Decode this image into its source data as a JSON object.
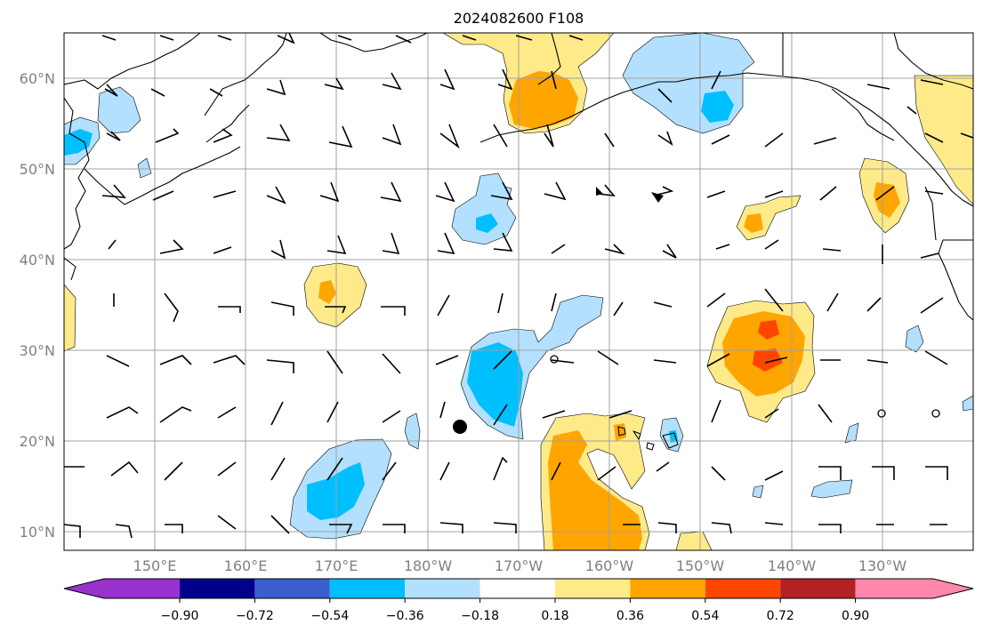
{
  "title": "2024082600 F108",
  "lat_labels": [
    "60°N",
    "50°N",
    "40°N",
    "30°N",
    "20°N",
    "10°N"
  ],
  "lon_labels": [
    "150°E",
    "160°E",
    "170°E",
    "180°W",
    "170°W",
    "160°W",
    "150°W",
    "140°W",
    "130°W"
  ],
  "colorbar": {
    "ticks": [
      "−0.90",
      "−0.72",
      "−0.54",
      "−0.36",
      "−0.18",
      "0.18",
      "0.36",
      "0.54",
      "0.72",
      "0.90"
    ],
    "colors": [
      "#9932cc",
      "#00008b",
      "#3a5fcd",
      "#00bfff",
      "#b3e0ff",
      "#ffffff",
      "#ffea8a",
      "#ffa500",
      "#ff4500",
      "#b22222",
      "#ff88aa"
    ]
  },
  "map": {
    "lat_range": [
      8,
      65
    ],
    "lon_range": [
      140,
      240
    ],
    "markers": [
      {
        "type": "filled-dot",
        "lat": 21.5,
        "lon": 184.2
      },
      {
        "type": "open-circle",
        "lat": 29.2,
        "lon": 194.0
      },
      {
        "type": "open-circle",
        "lat": 23.0,
        "lon": 230.0
      },
      {
        "type": "open-circle",
        "lat": 23.0,
        "lon": 236.0
      }
    ]
  }
}
